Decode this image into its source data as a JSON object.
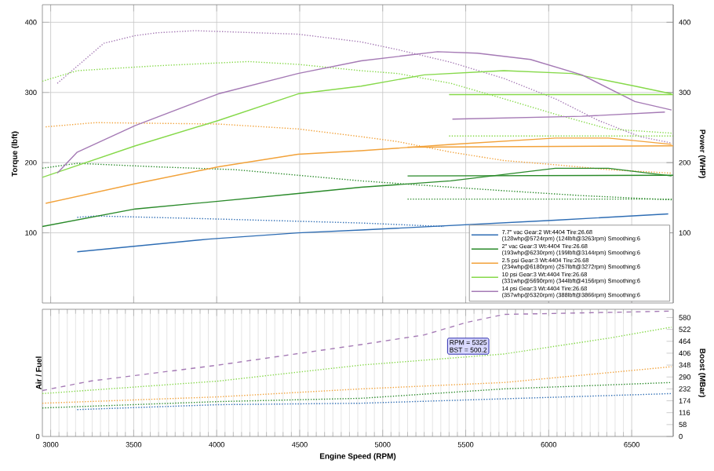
{
  "chart_data": [
    {
      "type": "line",
      "ylabel": "Torque (lbft)",
      "y2label": "Power (WHP)",
      "xlim": [
        2950,
        6750
      ],
      "xticks": [
        3000,
        3500,
        4000,
        4500,
        5000,
        5500,
        6000,
        6500
      ],
      "ylim": [
        0,
        425
      ],
      "yticks": [
        100,
        200,
        300,
        400
      ],
      "y2lim": [
        0,
        425
      ],
      "y2ticks": [
        100,
        200,
        300,
        400
      ],
      "grid": true,
      "legend": "bottom right",
      "tick_labels": "y",
      "series": [
        {
          "color": "#a57ab5",
          "line_style": "dotted",
          "x": [
            3040,
            3320,
            3510,
            3640,
            3870,
            4490,
            4870,
            5090,
            5410,
            5730,
            6040,
            6300,
            6550,
            6740
          ],
          "values": [
            313,
            370,
            381,
            385,
            388,
            383,
            372,
            361,
            343,
            320,
            291,
            260,
            237,
            228
          ]
        },
        {
          "color": "#86d94a",
          "line_style": "dotted",
          "x": [
            2950,
            3160,
            3640,
            4190,
            4490,
            4870,
            5090,
            5410,
            5730,
            6040,
            6360,
            6740
          ],
          "values": [
            316,
            331,
            338,
            344,
            340,
            331,
            327,
            313,
            291,
            269,
            248,
            242
          ]
        },
        {
          "color": "#f2a23a",
          "line_style": "dotted",
          "x": [
            2970,
            3270,
            4010,
            4490,
            4870,
            5090,
            5410,
            5730,
            6040,
            6360,
            6740
          ],
          "values": [
            251,
            257,
            255,
            248,
            237,
            230,
            215,
            203,
            197,
            190,
            185
          ]
        },
        {
          "color": "#2a8a2a",
          "line_style": "dotted",
          "x": [
            2950,
            3160,
            3640,
            4110,
            4870,
            5410,
            5730,
            6200,
            6740
          ],
          "values": [
            192,
            199,
            194,
            190,
            174,
            165,
            160,
            153,
            147
          ]
        },
        {
          "color": "#2e6db4",
          "line_style": "dotted",
          "x": [
            3160,
            3270,
            3950,
            4870,
            5370
          ],
          "values": [
            122,
            124,
            120,
            114,
            109
          ]
        },
        {
          "color": "#86d94a",
          "line_style": "dotted",
          "x": [
            5400,
            6750
          ],
          "values": [
            238,
            238
          ]
        },
        {
          "color": "#2a8a2a",
          "line_style": "dotted",
          "x": [
            5150,
            6750
          ],
          "values": [
            148,
            148
          ]
        },
        {
          "name": "7.7\" vac Gear:2 Wt:4404 Tire:26.68 (128whp@5724rpm) (124lbft@3263rpm) Smoothing:6",
          "color": "#2e6db4",
          "axis": "y2",
          "line_style": "solid",
          "x": [
            3160,
            3950,
            4490,
            4870,
            6040,
            6720
          ],
          "values": [
            73,
            91,
            100,
            104,
            118,
            127
          ]
        },
        {
          "name": "2\" vac Gear:3 Wt:4404 Tire:26.68 (193whp@6230rpm) (199lbft@3144rpm) Smoothing:6",
          "color": "#2a8a2a",
          "axis": "y2",
          "line_style": "solid",
          "x": [
            2950,
            3510,
            4010,
            4490,
            4870,
            5410,
            6040,
            6360,
            6740
          ],
          "values": [
            109,
            134,
            145,
            156,
            165,
            174,
            192,
            192,
            181
          ]
        },
        {
          "name": "2.5 psi Gear:3 Wt:4404 Tire:26.68 (234whp@6180rpm) (257lbft@3272rpm) Smoothing:6",
          "color": "#f2a23a",
          "axis": "y2",
          "line_style": "solid",
          "x": [
            2970,
            3510,
            4010,
            4490,
            4870,
            5410,
            6040,
            6360,
            6740
          ],
          "values": [
            142,
            170,
            194,
            212,
            217,
            226,
            235,
            235,
            226
          ]
        },
        {
          "name": "10 psi Gear:3 Wt:4404 Tire:26.68 (331whp@5690rpm) (344lbft@4156rpm) Smoothing:6",
          "color": "#86d94a",
          "axis": "y2",
          "line_style": "solid",
          "x": [
            2950,
            3510,
            4010,
            4490,
            4870,
            5250,
            5730,
            6140,
            6520,
            6740
          ],
          "values": [
            179,
            224,
            260,
            298,
            309,
            325,
            331,
            327,
            309,
            298
          ]
        },
        {
          "name": "14 psi Gear:3 Wt:4404 Tire:26.68 (357whp@5320rpm) (388lbft@3866rpm) Smoothing:6",
          "color": "#a57ab5",
          "axis": "y2",
          "line_style": "solid",
          "x": [
            3040,
            3160,
            3510,
            4010,
            4490,
            4870,
            5330,
            5570,
            5890,
            6200,
            6520,
            6740
          ],
          "values": [
            185,
            215,
            253,
            298,
            327,
            345,
            358,
            356,
            347,
            325,
            287,
            275
          ]
        },
        {
          "color": "#86d94a",
          "axis": "y2",
          "line_style": "solid",
          "x": [
            5400,
            6750
          ],
          "values": [
            297,
            297
          ]
        },
        {
          "color": "#f2a23a",
          "axis": "y2",
          "line_style": "solid",
          "x": [
            5150,
            6750
          ],
          "values": [
            222,
            224
          ]
        },
        {
          "color": "#2a8a2a",
          "axis": "y2",
          "line_style": "solid",
          "x": [
            5150,
            6750
          ],
          "values": [
            181,
            182
          ]
        },
        {
          "color": "#a57ab5",
          "axis": "y2",
          "line_style": "solid",
          "x": [
            5420,
            6200,
            6700
          ],
          "values": [
            262,
            266,
            272
          ]
        }
      ]
    },
    {
      "type": "line",
      "xlabel": "Engine Speed (RPM)",
      "ylabel": "Air / Fuel",
      "y2label": "Boost (MBar)",
      "xlim": [
        2950,
        6750
      ],
      "xticks": [
        3000,
        3500,
        4000,
        4500,
        5000,
        5500,
        6000,
        6500
      ],
      "y2lim": [
        0,
        620
      ],
      "y2ticks": [
        0,
        58,
        116,
        174,
        232,
        290,
        348,
        406,
        464,
        522,
        580
      ],
      "grid": "x",
      "annotations": [
        "RPM = 5325",
        "BST = 500.2",
        {
          "text": "0"
        }
      ],
      "series": [
        {
          "color": "#a57ab5",
          "axis": "y2",
          "line_style": "dashed",
          "x": [
            2950,
            3240,
            4010,
            4870,
            5250,
            5510,
            5730,
            6740
          ],
          "values": [
            224,
            270,
            348,
            448,
            495,
            557,
            595,
            611
          ]
        },
        {
          "color": "#86d94a",
          "axis": "y2",
          "line_style": "dotted",
          "x": [
            2950,
            4010,
            4870,
            5730,
            6360,
            6740
          ],
          "values": [
            209,
            270,
            348,
            402,
            479,
            533
          ]
        },
        {
          "color": "#f2a23a",
          "axis": "y2",
          "line_style": "dotted",
          "x": [
            2950,
            4010,
            4870,
            5730,
            6740
          ],
          "values": [
            162,
            193,
            232,
            263,
            340
          ]
        },
        {
          "color": "#2a8a2a",
          "axis": "y2",
          "line_style": "dotted",
          "x": [
            2950,
            4010,
            4870,
            5730,
            6740
          ],
          "values": [
            139,
            170,
            186,
            232,
            263
          ]
        },
        {
          "color": "#2e6db4",
          "axis": "y2",
          "line_style": "dotted",
          "x": [
            3160,
            4010,
            4870,
            6740
          ],
          "values": [
            131,
            155,
            162,
            209
          ]
        }
      ]
    }
  ]
}
